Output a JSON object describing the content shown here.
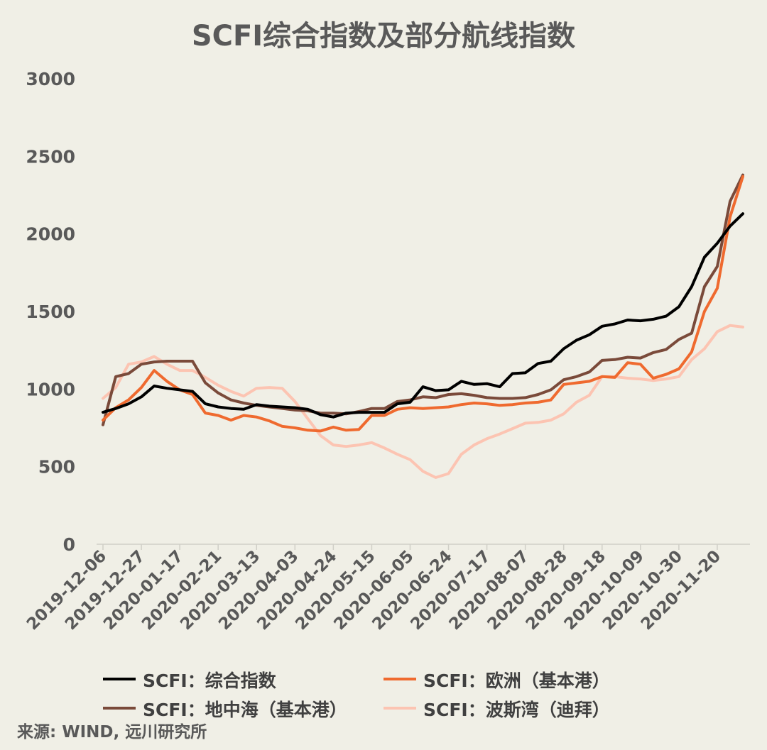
{
  "title": "SCFI综合指数及部分航线指数",
  "source": "来源: WIND, 远川研究所",
  "chart_data": {
    "type": "line",
    "title": "SCFI综合指数及部分航线指数",
    "y_ticks": [
      0,
      500,
      1000,
      1500,
      2000,
      2500,
      3000
    ],
    "ylim": [
      0,
      3000
    ],
    "grid": false,
    "legend_position": "bottom",
    "x_tick_labels": [
      "2019-12-06",
      "2019-12-27",
      "2020-01-17",
      "2020-02-21",
      "2020-03-13",
      "2020-04-03",
      "2020-04-24",
      "2020-05-15",
      "2020-06-05",
      "2020-06-24",
      "2020-07-17",
      "2020-08-07",
      "2020-08-28",
      "2020-09-18",
      "2020-10-09",
      "2020-10-30",
      "2020-11-20"
    ],
    "x_tick_indices": [
      0,
      3,
      6,
      9,
      12,
      15,
      18,
      21,
      24,
      27,
      30,
      33,
      36,
      39,
      42,
      45,
      48
    ],
    "n_points": 51,
    "series": [
      {
        "name": "SCFI：综合指数",
        "color": "#000000",
        "values": [
          850,
          875,
          905,
          950,
          1020,
          1005,
          995,
          985,
          905,
          885,
          875,
          870,
          900,
          890,
          885,
          880,
          870,
          835,
          820,
          845,
          850,
          850,
          850,
          905,
          915,
          1015,
          990,
          995,
          1050,
          1030,
          1035,
          1015,
          1100,
          1105,
          1165,
          1180,
          1260,
          1315,
          1350,
          1405,
          1420,
          1445,
          1440,
          1450,
          1470,
          1530,
          1660,
          1850,
          1940,
          2050,
          2130
        ]
      },
      {
        "name": "SCFI：欧洲（基本港）",
        "color": "#ef6a2f",
        "values": [
          800,
          880,
          930,
          1010,
          1120,
          1050,
          995,
          965,
          845,
          830,
          800,
          830,
          820,
          795,
          760,
          750,
          735,
          730,
          755,
          735,
          740,
          830,
          830,
          870,
          880,
          875,
          880,
          885,
          900,
          910,
          905,
          895,
          900,
          910,
          915,
          930,
          1030,
          1040,
          1050,
          1080,
          1075,
          1170,
          1160,
          1070,
          1095,
          1130,
          1240,
          1500,
          1650,
          2110,
          2370
        ]
      },
      {
        "name": "SCFI：地中海（基本港）",
        "color": "#7a4a3a",
        "values": [
          770,
          1080,
          1100,
          1160,
          1175,
          1180,
          1180,
          1180,
          1040,
          975,
          930,
          910,
          895,
          885,
          875,
          865,
          860,
          845,
          845,
          840,
          855,
          875,
          875,
          920,
          930,
          950,
          945,
          965,
          970,
          960,
          945,
          940,
          940,
          945,
          965,
          995,
          1060,
          1080,
          1110,
          1185,
          1190,
          1205,
          1200,
          1235,
          1255,
          1320,
          1360,
          1660,
          1790,
          2210,
          2380
        ]
      },
      {
        "name": "SCFI：波斯湾（迪拜）",
        "color": "#fcc4b2",
        "values": [
          940,
          1010,
          1160,
          1175,
          1210,
          1160,
          1120,
          1120,
          1075,
          1025,
          985,
          955,
          1005,
          1010,
          1005,
          920,
          810,
          700,
          640,
          630,
          640,
          655,
          620,
          580,
          545,
          470,
          430,
          455,
          580,
          640,
          680,
          710,
          745,
          780,
          785,
          800,
          840,
          915,
          960,
          1080,
          1080,
          1070,
          1065,
          1055,
          1065,
          1080,
          1190,
          1260,
          1370,
          1410,
          1400
        ]
      }
    ]
  }
}
